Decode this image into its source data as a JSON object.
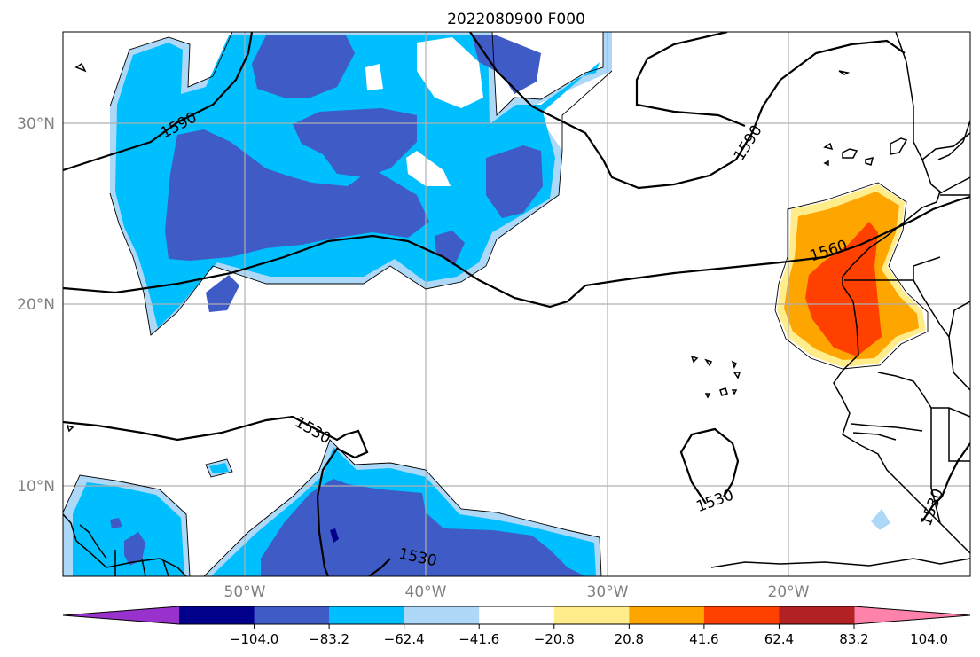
{
  "title": "2022080900 F000",
  "map": {
    "lat_range": [
      5,
      35
    ],
    "lon_range": [
      -60,
      -10
    ],
    "lat_labels": [
      "30°N",
      "20°N",
      "10°N"
    ],
    "lon_labels": [
      "50°W",
      "40°W",
      "30°W",
      "20°W"
    ],
    "gridlines": true
  },
  "contours": {
    "labels": [
      "1590",
      "1590",
      "1560",
      "1530",
      "1530",
      "1530",
      "1530"
    ]
  },
  "colorbar": {
    "ticks": [
      "−104.0",
      "−83.2",
      "−62.4",
      "−41.6",
      "−20.8",
      "20.8",
      "41.6",
      "62.4",
      "83.2",
      "104.0"
    ],
    "colors": [
      "#9932cc",
      "#00008b",
      "#3e5bc6",
      "#00bfff",
      "#add8f7",
      "#ffffff",
      "#ffec8b",
      "#ffa500",
      "#ff4000",
      "#b22222",
      "#ff82ab"
    ],
    "extend": "both"
  }
}
